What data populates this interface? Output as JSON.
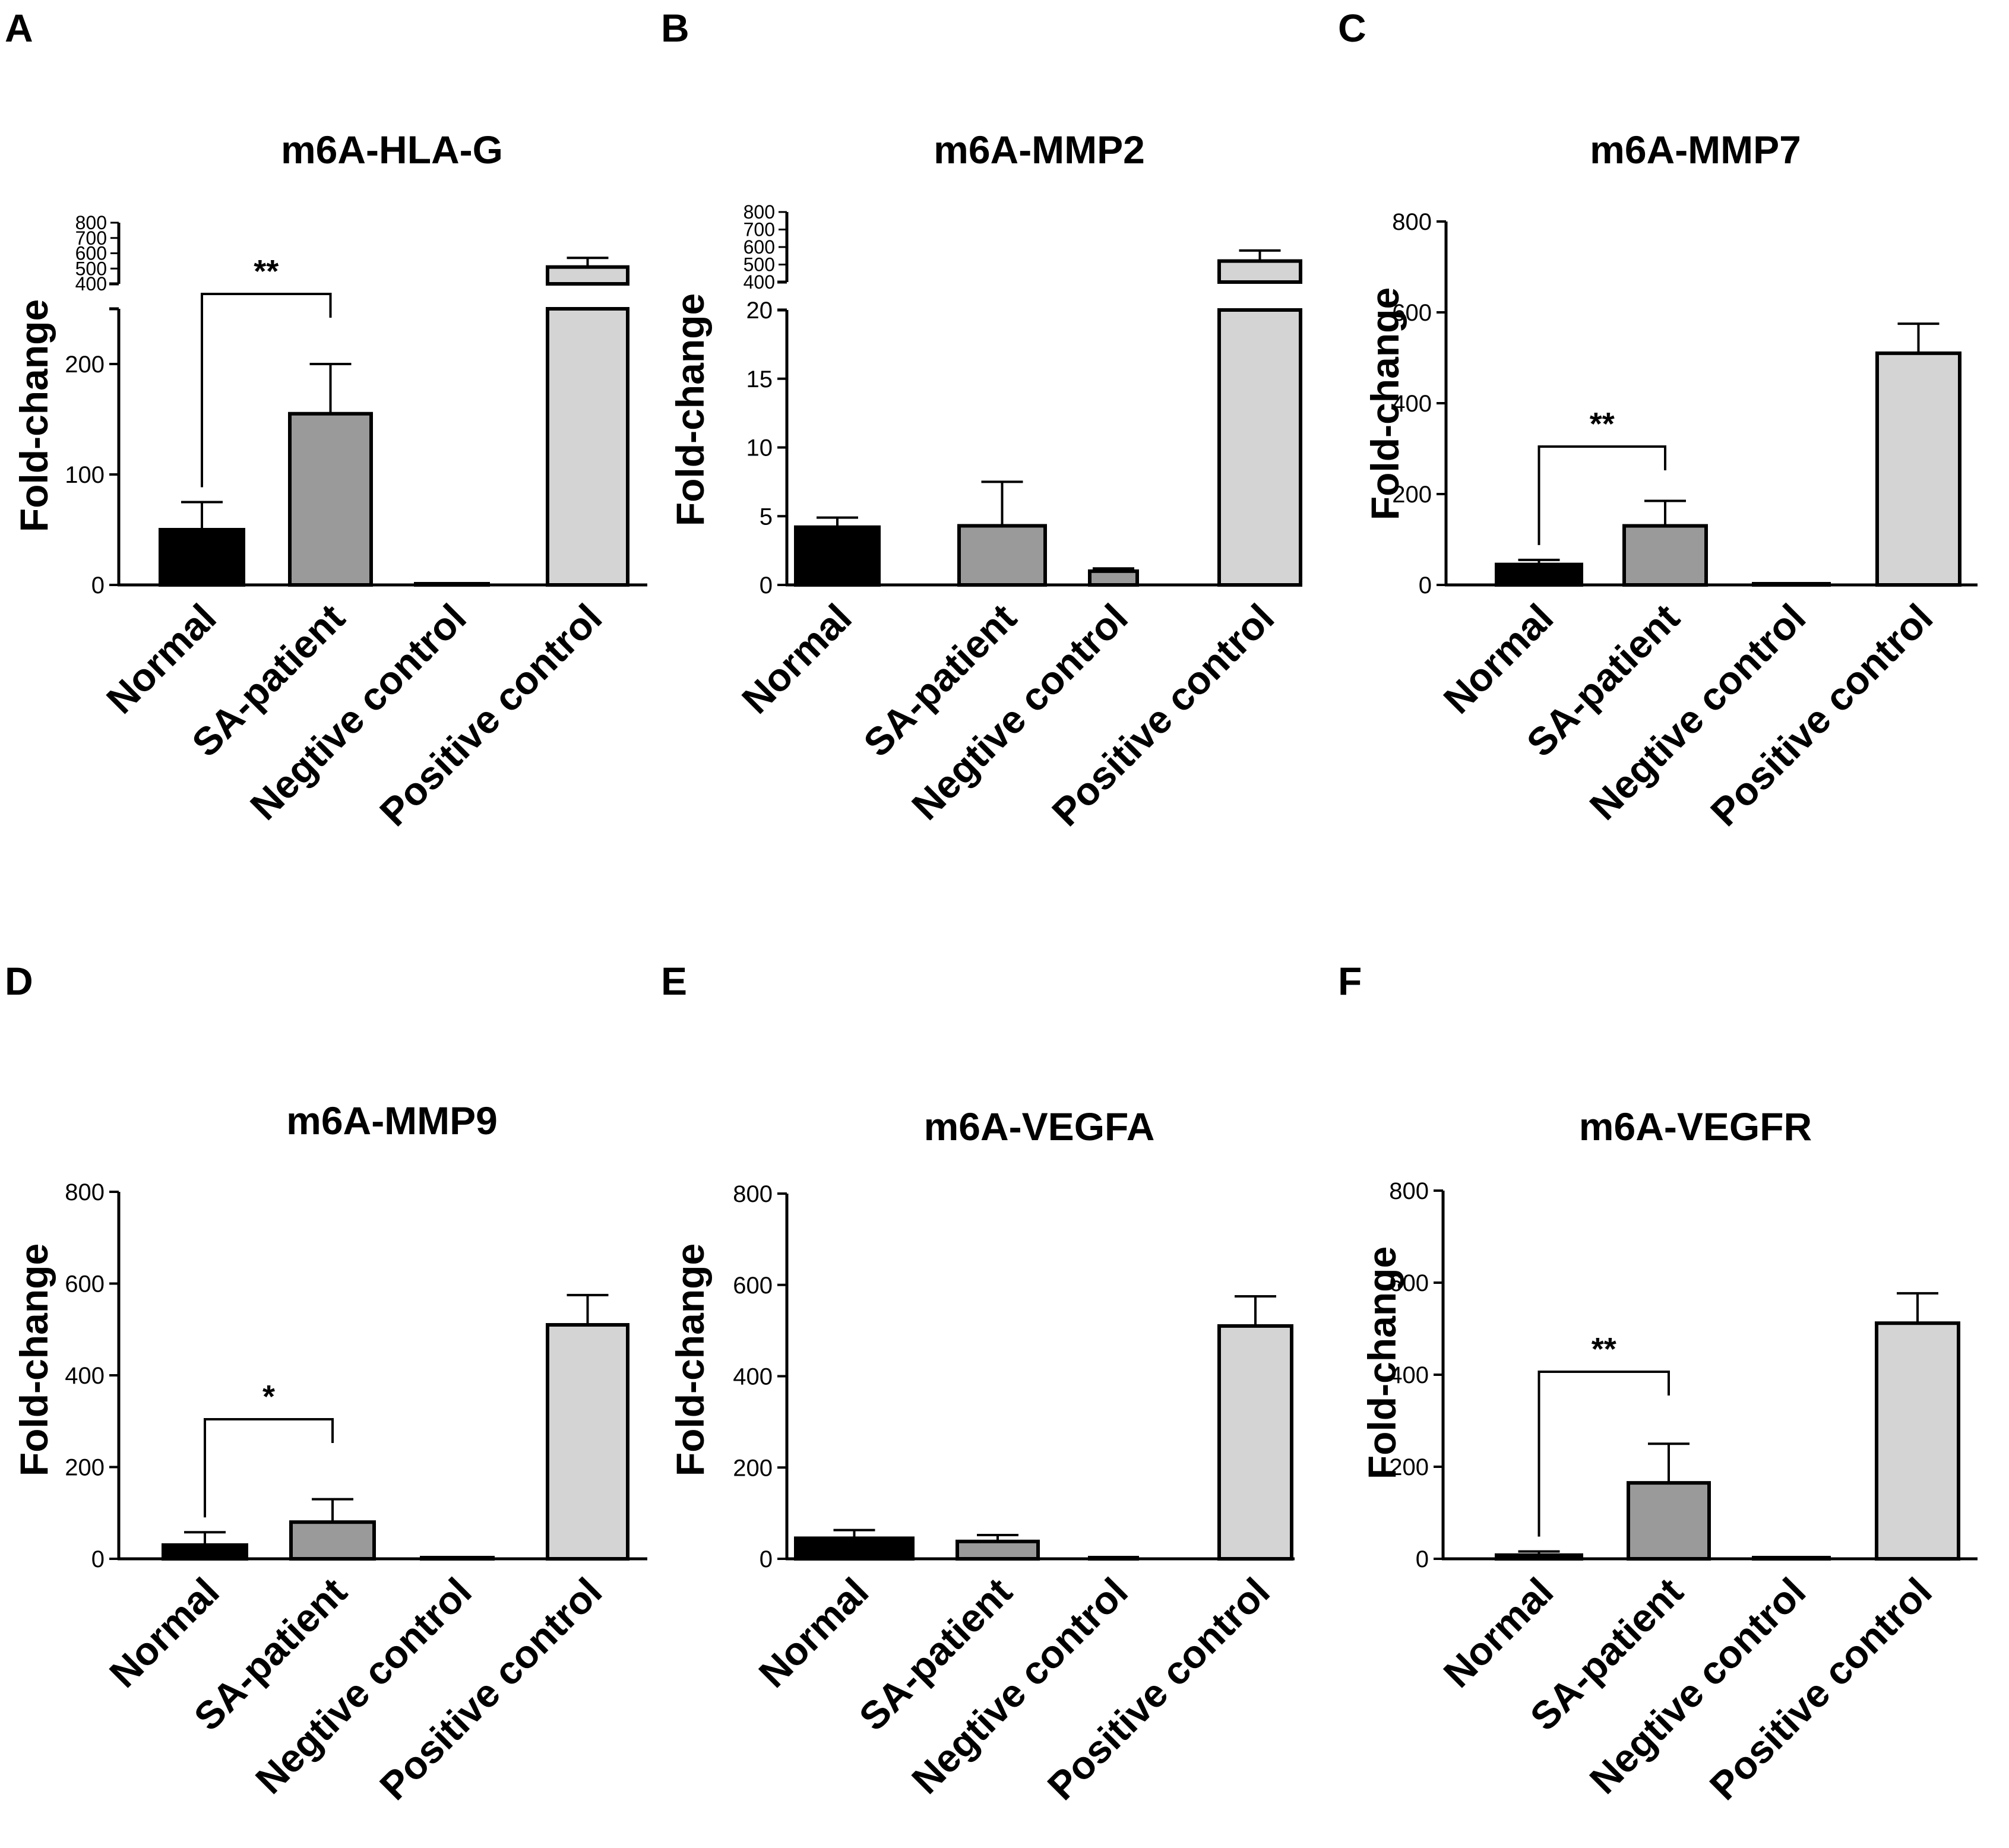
{
  "chart_data": [
    {
      "panel": "A",
      "type": "bar",
      "title": "m6A-HLA-G",
      "ylabel": "Fold-change",
      "categories": [
        "Normal",
        "SA-patient",
        "Negtive control",
        "Positive control"
      ],
      "values": [
        50,
        155,
        1,
        510
      ],
      "errors": [
        25,
        45,
        0,
        60
      ],
      "colors": [
        "#000000",
        "#9a9a9a",
        "#ffffff",
        "#d4d4d4"
      ],
      "broken_axis": true,
      "lower_range": [
        0,
        250
      ],
      "lower_ticks": [
        0,
        100,
        200
      ],
      "upper_range": [
        400,
        800
      ],
      "upper_ticks": [
        400,
        500,
        600,
        700,
        800
      ],
      "significance": {
        "from": 0,
        "to": 1,
        "label": "**"
      }
    },
    {
      "panel": "B",
      "type": "bar",
      "title": "m6A-MMP2",
      "ylabel": "Fold-change",
      "categories": [
        "Normal",
        "SA-patient",
        "Negtive control",
        "Positive control"
      ],
      "values": [
        4.2,
        4.3,
        1.0,
        520
      ],
      "errors": [
        0.7,
        3.2,
        0.2,
        60
      ],
      "colors": [
        "#000000",
        "#9a9a9a",
        "#9a9a9a",
        "#d4d4d4"
      ],
      "broken_axis": true,
      "lower_range": [
        0,
        20
      ],
      "lower_ticks": [
        0,
        5,
        10,
        15,
        20
      ],
      "upper_range": [
        400,
        800
      ],
      "upper_ticks": [
        400,
        500,
        600,
        700,
        800
      ]
    },
    {
      "panel": "C",
      "type": "bar",
      "title": "m6A-MMP7",
      "ylabel": "Fold-change",
      "categories": [
        "Normal",
        "SA-patient",
        "Negtive control",
        "Positive control"
      ],
      "values": [
        45,
        130,
        0,
        510
      ],
      "errors": [
        10,
        55,
        0,
        65
      ],
      "colors": [
        "#000000",
        "#9a9a9a",
        "#ffffff",
        "#d4d4d4"
      ],
      "ylim": [
        0,
        800
      ],
      "yticks": [
        0,
        200,
        400,
        600,
        800
      ],
      "significance": {
        "from": 0,
        "to": 1,
        "label": "**"
      }
    },
    {
      "panel": "D",
      "type": "bar",
      "title": "m6A-MMP9",
      "ylabel": "Fold-change",
      "categories": [
        "Normal",
        "SA-patient",
        "Negtive control",
        "Positive control"
      ],
      "values": [
        30,
        80,
        0,
        510
      ],
      "errors": [
        28,
        50,
        0,
        65
      ],
      "colors": [
        "#000000",
        "#9a9a9a",
        "#ffffff",
        "#d4d4d4"
      ],
      "ylim": [
        0,
        800
      ],
      "yticks": [
        0,
        200,
        400,
        600,
        800
      ],
      "significance": {
        "from": 0,
        "to": 1,
        "label": "*"
      }
    },
    {
      "panel": "E",
      "type": "bar",
      "title": "m6A-VEGFA",
      "ylabel": "Fold-change",
      "categories": [
        "Normal",
        "SA-patient",
        "Negtive control",
        "Positive control"
      ],
      "values": [
        45,
        38,
        0,
        510
      ],
      "errors": [
        18,
        14,
        0,
        65
      ],
      "colors": [
        "#000000",
        "#9a9a9a",
        "#ffffff",
        "#d4d4d4"
      ],
      "ylim": [
        0,
        800
      ],
      "yticks": [
        0,
        200,
        400,
        600,
        800
      ]
    },
    {
      "panel": "F",
      "type": "bar",
      "title": "m6A-VEGFR",
      "ylabel": "Fold-change",
      "categories": [
        "Normal",
        "SA-patient",
        "Negtive control",
        "Positive control"
      ],
      "values": [
        8,
        165,
        0,
        512
      ],
      "errors": [
        8,
        85,
        0,
        65
      ],
      "colors": [
        "#000000",
        "#9a9a9a",
        "#ffffff",
        "#d4d4d4"
      ],
      "ylim": [
        0,
        800
      ],
      "yticks": [
        0,
        200,
        400,
        600,
        800
      ],
      "significance": {
        "from": 0,
        "to": 1,
        "label": "**"
      }
    }
  ]
}
